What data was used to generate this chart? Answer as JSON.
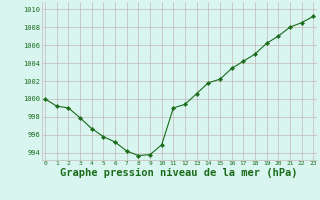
{
  "x": [
    0,
    1,
    2,
    3,
    4,
    5,
    6,
    7,
    8,
    9,
    10,
    11,
    12,
    13,
    14,
    15,
    16,
    17,
    18,
    19,
    20,
    21,
    22,
    23
  ],
  "y": [
    1000.0,
    999.2,
    999.0,
    997.9,
    996.7,
    995.8,
    995.2,
    994.2,
    993.7,
    993.8,
    994.9,
    999.0,
    999.4,
    1000.6,
    1001.8,
    1002.2,
    1003.4,
    1004.2,
    1005.0,
    1006.2,
    1007.0,
    1008.0,
    1008.5,
    1009.2
  ],
  "line_color": "#1a6b1a",
  "marker": "D",
  "marker_size": 2.2,
  "bg_color": "#d8f5f0",
  "grid_color": "#c8b8b8",
  "xlabel": "Graphe pression niveau de la mer (hPa)",
  "xlabel_fontsize": 7.5,
  "ylabel_ticks": [
    994,
    996,
    998,
    1000,
    1002,
    1004,
    1006,
    1008,
    1010
  ],
  "xticks": [
    0,
    1,
    2,
    3,
    4,
    5,
    6,
    7,
    8,
    9,
    10,
    11,
    12,
    13,
    14,
    15,
    16,
    17,
    18,
    19,
    20,
    21,
    22,
    23
  ],
  "xlim": [
    -0.3,
    23.3
  ],
  "ylim": [
    993.2,
    1010.8
  ]
}
